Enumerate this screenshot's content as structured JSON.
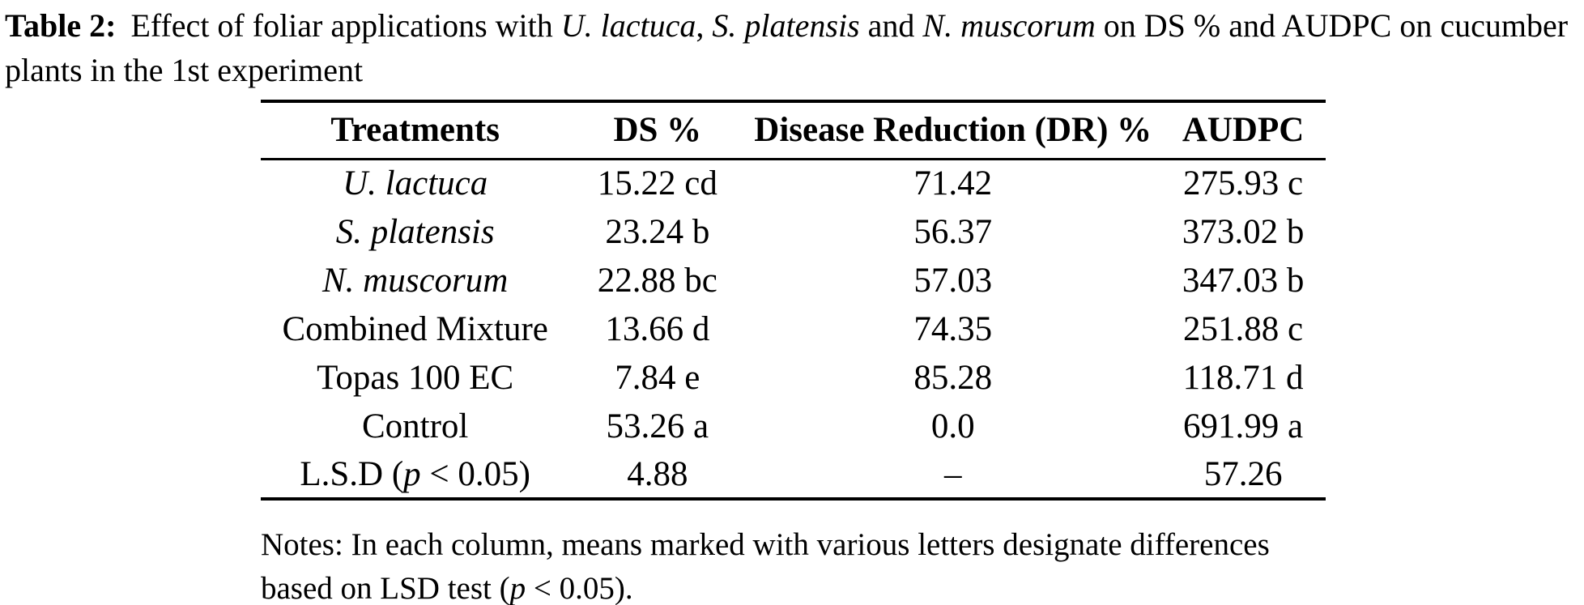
{
  "colors": {
    "background": "#ffffff",
    "text": "#000000",
    "rule": "#000000"
  },
  "caption": {
    "label": "Table 2:",
    "segments": [
      {
        "text": "Effect of foliar applications with ",
        "style": "normal"
      },
      {
        "text": "U. lactuca",
        "style": "italic"
      },
      {
        "text": ", ",
        "style": "normal"
      },
      {
        "text": "S. platensis",
        "style": "italic"
      },
      {
        "text": " and ",
        "style": "normal"
      },
      {
        "text": "N. muscorum",
        "style": "italic"
      },
      {
        "text": " on DS % and AUDPC on cucumber plants in the 1st experiment",
        "style": "normal"
      }
    ]
  },
  "table": {
    "columns": [
      "Treatments",
      "DS %",
      "Disease Reduction (DR) %",
      "AUDPC"
    ],
    "rows": [
      {
        "treatment": [
          {
            "text": "U. lactuca",
            "style": "italic"
          }
        ],
        "cells": [
          "15.22 cd",
          "71.42",
          "275.93 c"
        ]
      },
      {
        "treatment": [
          {
            "text": "S. platensis",
            "style": "italic"
          }
        ],
        "cells": [
          "23.24 b",
          "56.37",
          "373.02 b"
        ]
      },
      {
        "treatment": [
          {
            "text": "N. muscorum",
            "style": "italic"
          }
        ],
        "cells": [
          "22.88 bc",
          "57.03",
          "347.03 b"
        ]
      },
      {
        "treatment": [
          {
            "text": "Combined Mixture",
            "style": "normal"
          }
        ],
        "cells": [
          "13.66 d",
          "74.35",
          "251.88 c"
        ]
      },
      {
        "treatment": [
          {
            "text": "Topas 100 EC",
            "style": "normal"
          }
        ],
        "cells": [
          "7.84 e",
          "85.28",
          "118.71 d"
        ]
      },
      {
        "treatment": [
          {
            "text": "Control",
            "style": "normal"
          }
        ],
        "cells": [
          "53.26 a",
          "0.0",
          "691.99 a"
        ]
      },
      {
        "treatment": [
          {
            "text": "L.S.D (",
            "style": "normal"
          },
          {
            "text": "p",
            "style": "italic"
          },
          {
            "text": " < 0.05)",
            "style": "normal"
          }
        ],
        "cells": [
          "4.88",
          "–",
          "57.26"
        ]
      }
    ]
  },
  "notes": {
    "segments": [
      {
        "text": "Notes: In each column, means marked with various letters designate differences based on LSD test (",
        "style": "normal"
      },
      {
        "text": "p",
        "style": "italic"
      },
      {
        "text": " < 0.05).",
        "style": "normal"
      }
    ]
  }
}
